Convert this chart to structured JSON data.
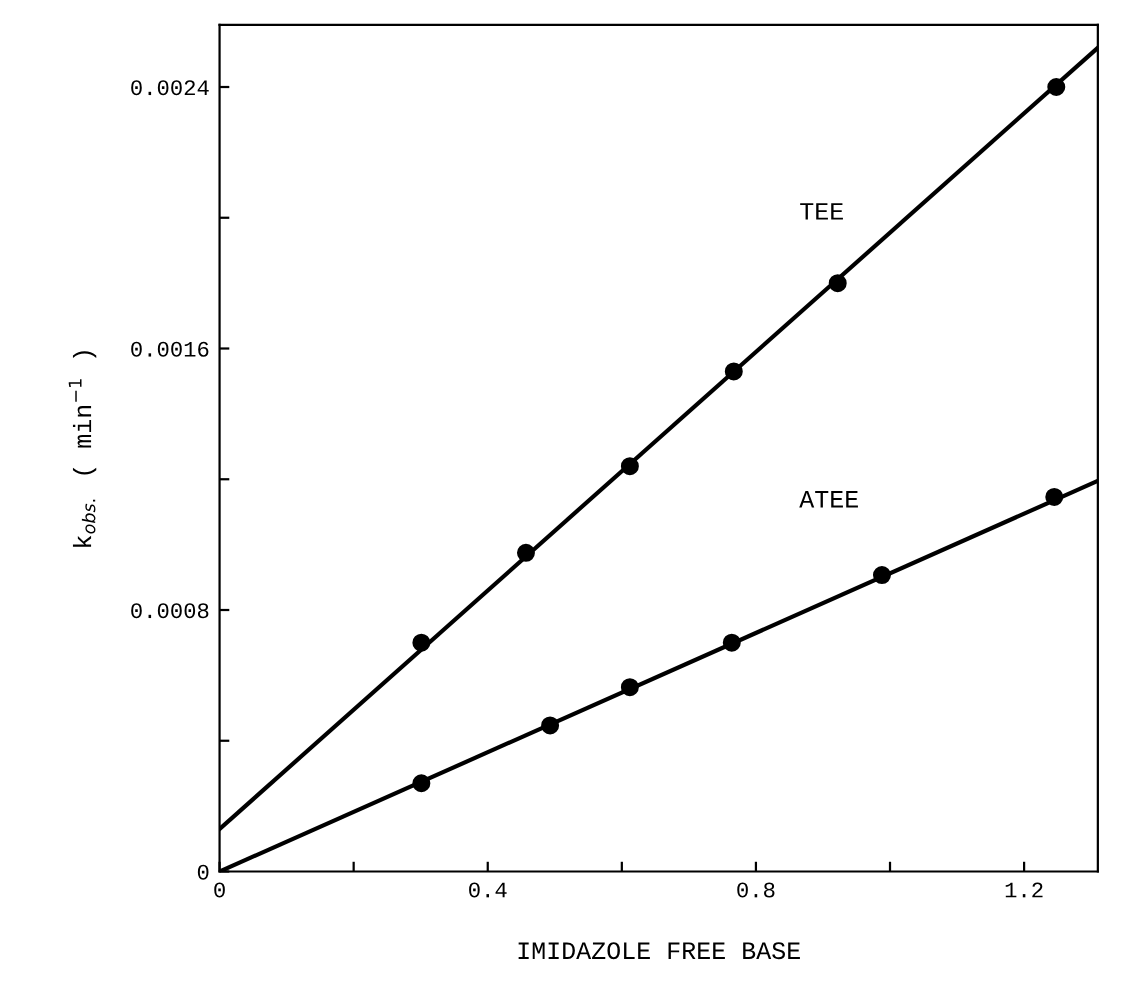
{
  "chart_data": {
    "type": "scatter",
    "xlabel": "IMIDAZOLE FREE BASE",
    "ylabel": "k$_{obs.}$ ( min$^{−1}$ )",
    "xlim": [
      0,
      1.31
    ],
    "ylim": [
      0,
      0.00259
    ],
    "xticks": [
      0,
      {
        "value": 0.2,
        "label": null
      },
      0.4,
      {
        "value": 0.6,
        "label": null
      },
      0.8,
      {
        "value": 1.0,
        "label": null
      },
      1.2
    ],
    "yticks": [
      0,
      {
        "value": 0.0004,
        "label": null
      },
      0.0008,
      {
        "value": 0.0012,
        "label": null
      },
      0.0016,
      {
        "value": 0.002,
        "label": null
      },
      0.0024
    ],
    "grid": false,
    "legend": false,
    "series": [
      {
        "color": "#000000",
        "marker": "circle",
        "x": [
          0.301,
          0.457,
          0.612,
          0.767,
          0.922,
          1.248
        ],
        "values": [
          0.0007,
          0.000975,
          0.00124,
          0.00153,
          0.0018,
          0.0024
        ]
      },
      {
        "color": "#000000",
        "marker": "circle",
        "x": [
          0.301,
          0.493,
          0.612,
          0.764,
          0.988,
          1.245
        ],
        "values": [
          0.00027,
          0.000447,
          0.000564,
          0.0007,
          0.000907,
          0.001146
        ]
      },
      {
        "type": "line",
        "color": "#000000",
        "x": [
          0,
          1.31
        ],
        "values": [
          0.00013,
          0.00252
        ]
      },
      {
        "type": "line",
        "color": "#000000",
        "x": [
          0,
          1.31
        ],
        "values": [
          0,
          0.001195
        ]
      }
    ],
    "annotations": [
      "TEE",
      "ATEE"
    ]
  }
}
